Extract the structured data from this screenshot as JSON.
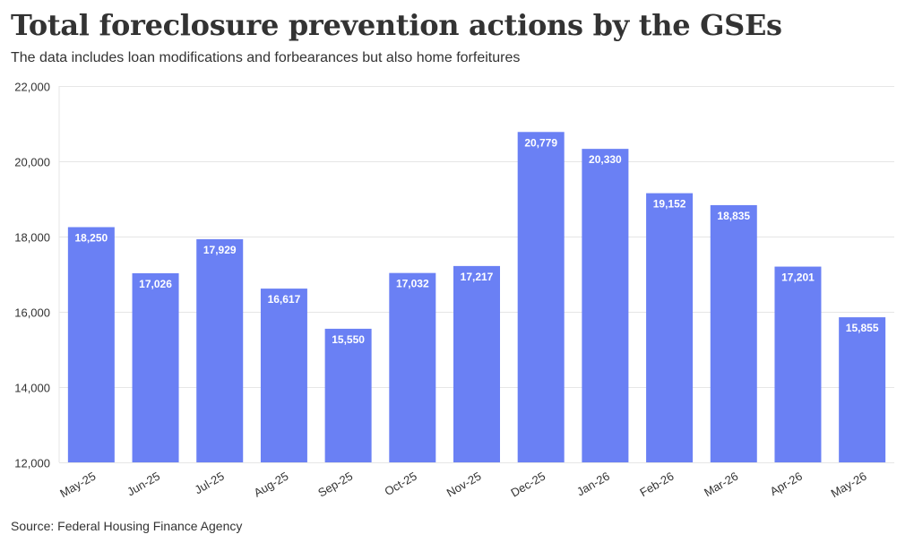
{
  "title": "Total foreclosure prevention actions by the GSEs",
  "subtitle": "The data includes loan modifications and forbearances but also home forfeitures",
  "source": "Source: Federal Housing Finance Agency",
  "colors": {
    "bar": "#6a80f4",
    "bar_label": "#ffffff",
    "grid": "#e6e6e6",
    "axis_text": "#333333"
  },
  "chart_data": {
    "type": "bar",
    "categories": [
      "May-25",
      "Jun-25",
      "Jul-25",
      "Aug-25",
      "Sep-25",
      "Oct-25",
      "Nov-25",
      "Dec-25",
      "Jan-26",
      "Feb-26",
      "Mar-26",
      "Apr-26",
      "May-26"
    ],
    "values": [
      18250,
      17026,
      17929,
      16617,
      15550,
      17032,
      17217,
      20779,
      20330,
      19152,
      18835,
      17201,
      15855
    ],
    "value_labels": [
      "18,250",
      "17,026",
      "17,929",
      "16,617",
      "15,550",
      "17,032",
      "17,217",
      "20,779",
      "20,330",
      "19,152",
      "18,835",
      "17,201",
      "15,855"
    ],
    "ylim": [
      12000,
      22000
    ],
    "yticks": [
      12000,
      14000,
      16000,
      18000,
      20000,
      22000
    ],
    "ytick_labels": [
      "12,000",
      "14,000",
      "16,000",
      "18,000",
      "20,000",
      "22,000"
    ],
    "grid": true,
    "legend": "none"
  }
}
